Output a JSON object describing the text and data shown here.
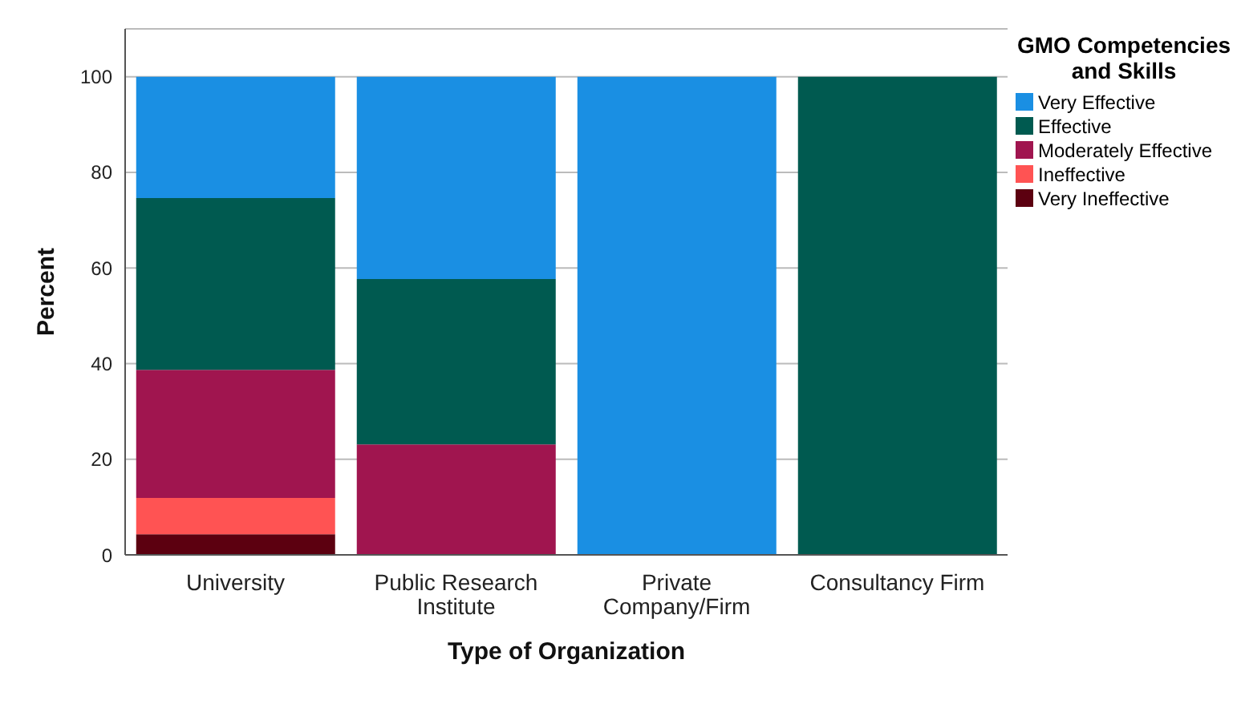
{
  "chart_data": {
    "type": "bar",
    "stacked": true,
    "xlabel": "Type of Organization",
    "ylabel": "Percent",
    "legend_title": "GMO Competencies and Skills",
    "categories": [
      "University",
      "Public Research Institute",
      "Private Company/Firm",
      "Consultancy Firm"
    ],
    "series": [
      {
        "name": "Very Ineffective",
        "color": "#5c0010",
        "values": [
          4.3,
          0,
          0,
          0
        ]
      },
      {
        "name": "Ineffective",
        "color": "#ff5353",
        "values": [
          7.6,
          0,
          0,
          0
        ]
      },
      {
        "name": "Moderately Effective",
        "color": "#a0154f",
        "values": [
          26.8,
          23.1,
          0,
          0
        ]
      },
      {
        "name": "Effective",
        "color": "#005a50",
        "values": [
          35.9,
          34.6,
          0,
          100
        ]
      },
      {
        "name": "Very Effective",
        "color": "#1a8fe3",
        "values": [
          25.4,
          42.3,
          100,
          0
        ]
      }
    ],
    "ylim": [
      0,
      110
    ],
    "yticks": [
      0,
      20,
      40,
      60,
      80,
      100
    ],
    "grid": "y",
    "legend": "right"
  }
}
